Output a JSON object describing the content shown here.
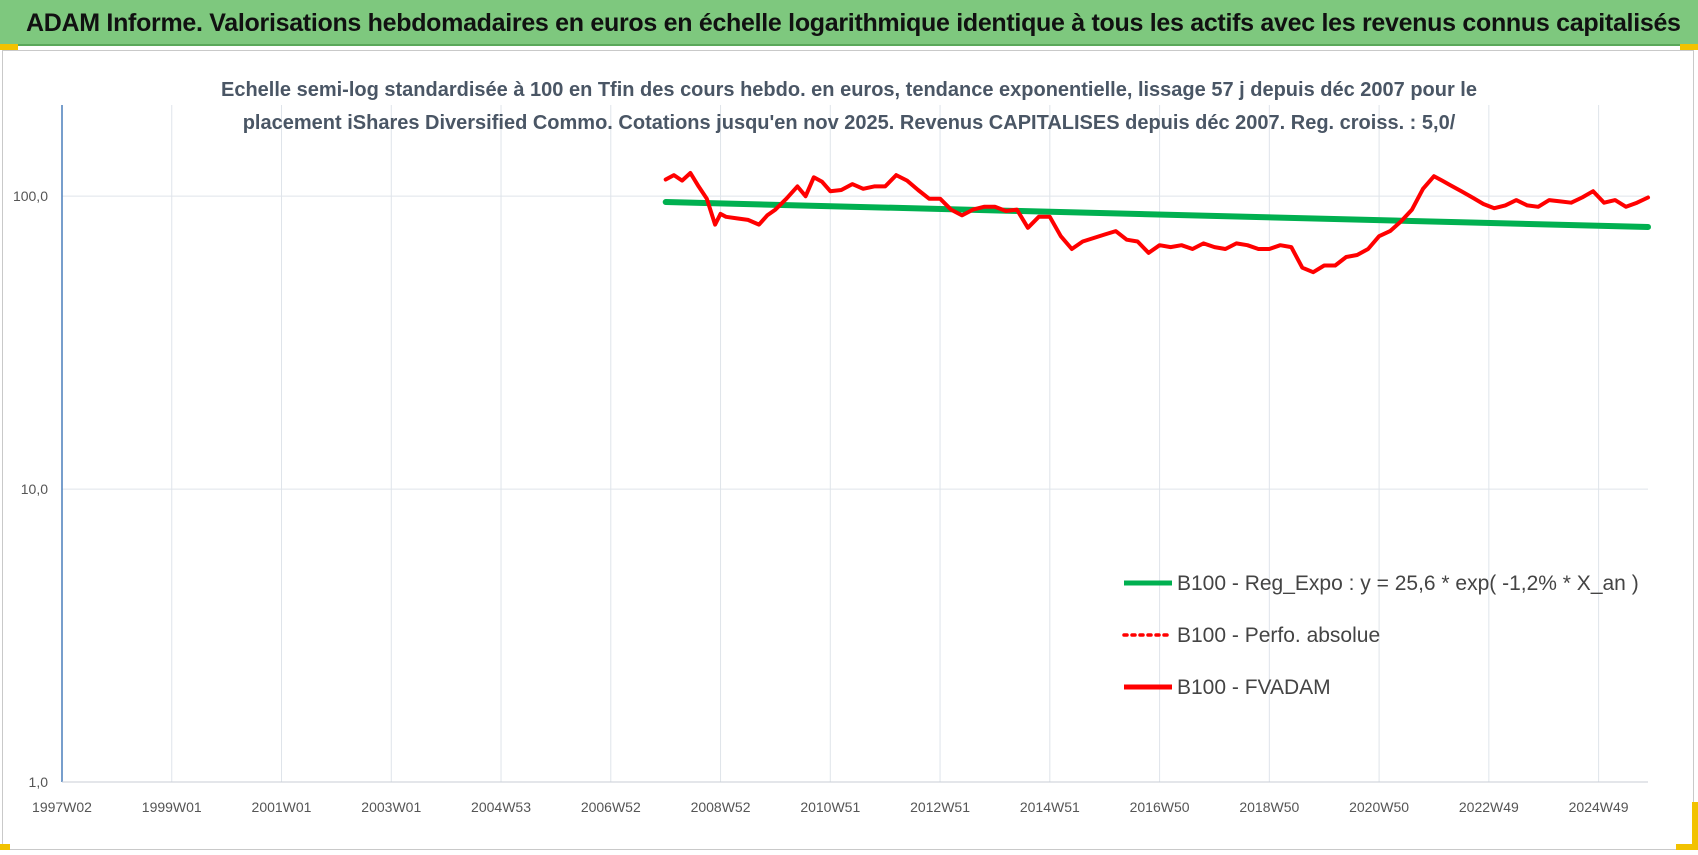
{
  "header": {
    "title": "ADAM Informe. Valorisations hebdomadaires en euros en échelle logarithmique identique à tous les actifs avec les revenus connus capitalisés"
  },
  "colors": {
    "banner": "#7ec87e",
    "trend": "#00b050",
    "perf": "#ff0000",
    "fvadam": "#ff0000",
    "corner": "#f2c200"
  },
  "chart_data": {
    "type": "line",
    "subtitle_lines": [
      "Echelle semi-log standardisée à 100 en Tfin des cours hebdo. en euros, tendance exponentielle, lissage 57 j depuis déc 2007 pour le",
      "placement iShares Diversified Commo. Cotations jusqu'en nov 2025. Revenus CAPITALISES depuis déc 2007. Reg. croiss. : 5,0/"
    ],
    "y_scale": "log",
    "ylim": [
      1,
      200
    ],
    "y_ticks": [
      {
        "value": 1,
        "label": "1,0"
      },
      {
        "value": 10,
        "label": "10,0"
      },
      {
        "value": 100,
        "label": "100,0"
      }
    ],
    "xlim": [
      1997.0,
      2025.9
    ],
    "x_ticks": [
      {
        "value": 1997.0,
        "label": "1997W02"
      },
      {
        "value": 1999.0,
        "label": "1999W01"
      },
      {
        "value": 2001.0,
        "label": "2001W01"
      },
      {
        "value": 2003.0,
        "label": "2003W01"
      },
      {
        "value": 2005.0,
        "label": "2004W53"
      },
      {
        "value": 2007.0,
        "label": "2006W52"
      },
      {
        "value": 2009.0,
        "label": "2008W52"
      },
      {
        "value": 2011.0,
        "label": "2010W51"
      },
      {
        "value": 2013.0,
        "label": "2012W51"
      },
      {
        "value": 2015.0,
        "label": "2014W51"
      },
      {
        "value": 2017.0,
        "label": "2016W50"
      },
      {
        "value": 2019.0,
        "label": "2018W50"
      },
      {
        "value": 2021.0,
        "label": "2020W50"
      },
      {
        "value": 2023.0,
        "label": "2022W49"
      },
      {
        "value": 2025.0,
        "label": "2024W49"
      }
    ],
    "grid": true,
    "legend_position": "lower-right",
    "series": [
      {
        "name": "B100 - Reg_Expo : y = 25,6 * exp( -1,2% *  X_an )",
        "style": "solid-green",
        "x": [
          2008.0,
          2025.9
        ],
        "y": [
          95.5,
          78.5
        ]
      },
      {
        "name": "B100 - Perfo. absolue",
        "style": "dotted-red",
        "x": [],
        "y": []
      },
      {
        "name": "B100 - FVADAM",
        "style": "solid-red",
        "x": [
          2008.0,
          2008.15,
          2008.3,
          2008.45,
          2008.6,
          2008.75,
          2008.9,
          2009.0,
          2009.1,
          2009.3,
          2009.5,
          2009.7,
          2009.85,
          2010.0,
          2010.2,
          2010.4,
          2010.55,
          2010.7,
          2010.85,
          2011.0,
          2011.2,
          2011.4,
          2011.6,
          2011.8,
          2012.0,
          2012.2,
          2012.4,
          2012.6,
          2012.8,
          2013.0,
          2013.2,
          2013.4,
          2013.6,
          2013.8,
          2014.0,
          2014.2,
          2014.4,
          2014.6,
          2014.8,
          2015.0,
          2015.2,
          2015.4,
          2015.6,
          2015.8,
          2016.0,
          2016.2,
          2016.4,
          2016.6,
          2016.8,
          2017.0,
          2017.2,
          2017.4,
          2017.6,
          2017.8,
          2018.0,
          2018.2,
          2018.4,
          2018.6,
          2018.8,
          2019.0,
          2019.2,
          2019.4,
          2019.6,
          2019.8,
          2020.0,
          2020.2,
          2020.4,
          2020.6,
          2020.8,
          2021.0,
          2021.2,
          2021.4,
          2021.6,
          2021.8,
          2022.0,
          2022.15,
          2022.3,
          2022.5,
          2022.7,
          2022.9,
          2023.1,
          2023.3,
          2023.5,
          2023.7,
          2023.9,
          2024.1,
          2024.3,
          2024.5,
          2024.7,
          2024.9,
          2025.1,
          2025.3,
          2025.5,
          2025.7,
          2025.9
        ],
        "y": [
          114,
          118,
          113,
          120,
          108,
          98,
          80,
          87,
          85,
          84,
          83,
          80,
          86,
          90,
          98,
          108,
          100,
          116,
          112,
          104,
          105,
          110,
          106,
          108,
          108,
          118,
          113,
          105,
          98,
          98,
          90,
          86,
          90,
          92,
          92,
          89,
          90,
          78,
          85,
          85,
          73,
          66,
          70,
          72,
          74,
          76,
          71,
          70,
          64,
          68,
          67,
          68,
          66,
          69,
          67,
          66,
          69,
          68,
          66,
          66,
          68,
          67,
          57,
          55,
          58,
          58,
          62,
          63,
          66,
          73,
          76,
          82,
          90,
          106,
          117,
          113,
          109,
          104,
          99,
          94,
          91,
          93,
          97,
          93,
          92,
          97,
          96,
          95,
          99,
          104,
          95,
          97,
          92,
          95,
          99
        ]
      }
    ]
  }
}
